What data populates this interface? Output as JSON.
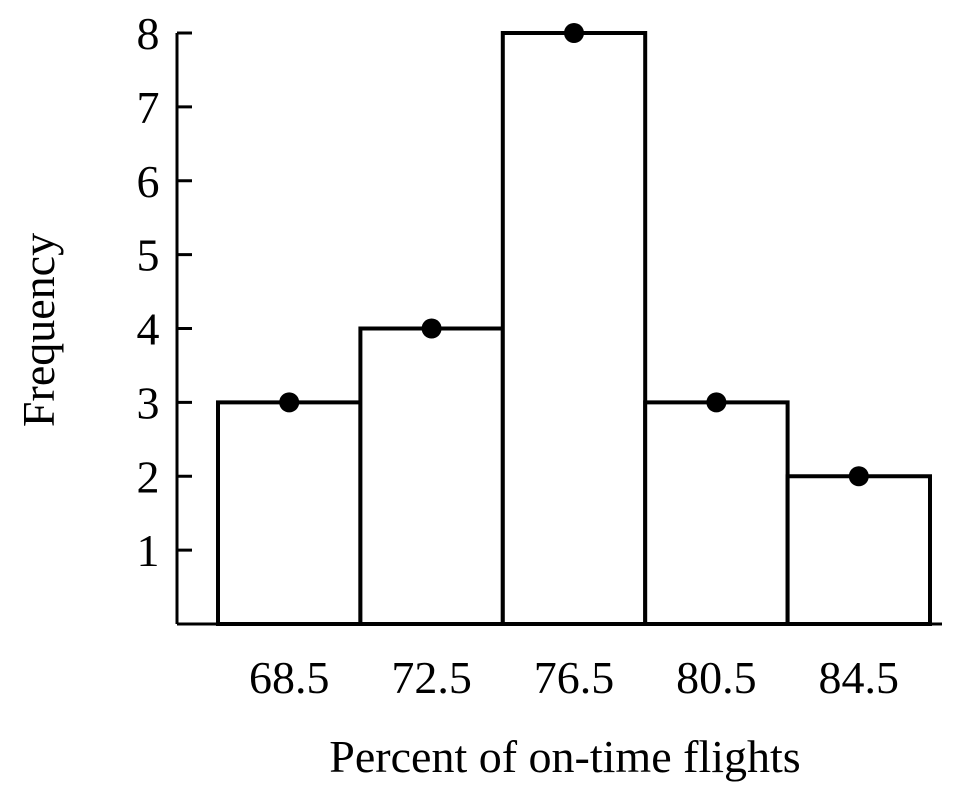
{
  "chart_data": {
    "type": "bar",
    "subtype": "histogram-with-midpoint-markers",
    "categories": [
      "68.5",
      "72.5",
      "76.5",
      "80.5",
      "84.5"
    ],
    "values": [
      3,
      4,
      8,
      3,
      2
    ],
    "xlabel": "Percent of on-time flights",
    "ylabel": "Frequency",
    "ylim": [
      0,
      8
    ],
    "yticks": [
      1,
      2,
      3,
      4,
      5,
      6,
      7,
      8
    ],
    "grid": false,
    "bar_fill": "#ffffff",
    "bar_stroke": "#000000",
    "marker_color": "#000000"
  }
}
